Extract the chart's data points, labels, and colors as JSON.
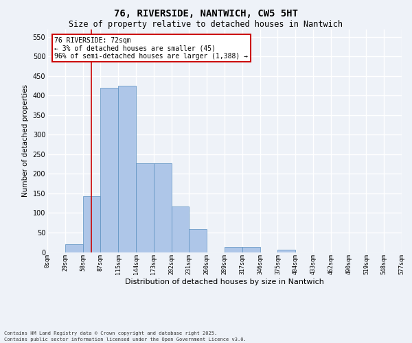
{
  "title_line1": "76, RIVERSIDE, NANTWICH, CW5 5HT",
  "title_line2": "Size of property relative to detached houses in Nantwich",
  "xlabel": "Distribution of detached houses by size in Nantwich",
  "ylabel": "Number of detached properties",
  "bin_labels": [
    "0sqm",
    "29sqm",
    "58sqm",
    "87sqm",
    "115sqm",
    "144sqm",
    "173sqm",
    "202sqm",
    "231sqm",
    "260sqm",
    "289sqm",
    "317sqm",
    "346sqm",
    "375sqm",
    "404sqm",
    "433sqm",
    "462sqm",
    "490sqm",
    "519sqm",
    "548sqm",
    "577sqm"
  ],
  "bar_values": [
    0,
    20,
    143,
    420,
    425,
    228,
    228,
    117,
    58,
    0,
    13,
    14,
    0,
    6,
    0,
    0,
    0,
    0,
    0,
    0
  ],
  "bar_color": "#aec6e8",
  "bar_edge_color": "#5a8fc0",
  "ylim": [
    0,
    570
  ],
  "yticks": [
    0,
    50,
    100,
    150,
    200,
    250,
    300,
    350,
    400,
    450,
    500,
    550
  ],
  "vline_x": 72,
  "bin_width": 29,
  "annotation_line1": "76 RIVERSIDE: 72sqm",
  "annotation_line2": "← 3% of detached houses are smaller (45)",
  "annotation_line3": "96% of semi-detached houses are larger (1,388) →",
  "footer_line1": "Contains HM Land Registry data © Crown copyright and database right 2025.",
  "footer_line2": "Contains public sector information licensed under the Open Government Licence v3.0.",
  "background_color": "#eef2f8",
  "grid_color": "#ffffff",
  "annotation_box_color": "#ffffff",
  "annotation_box_edge": "#cc0000",
  "vline_color": "#cc0000",
  "title1_fontsize": 10,
  "title2_fontsize": 8.5,
  "ylabel_fontsize": 7.5,
  "xlabel_fontsize": 8,
  "xtick_fontsize": 6,
  "ytick_fontsize": 7,
  "footer_fontsize": 5,
  "ann_fontsize": 7
}
